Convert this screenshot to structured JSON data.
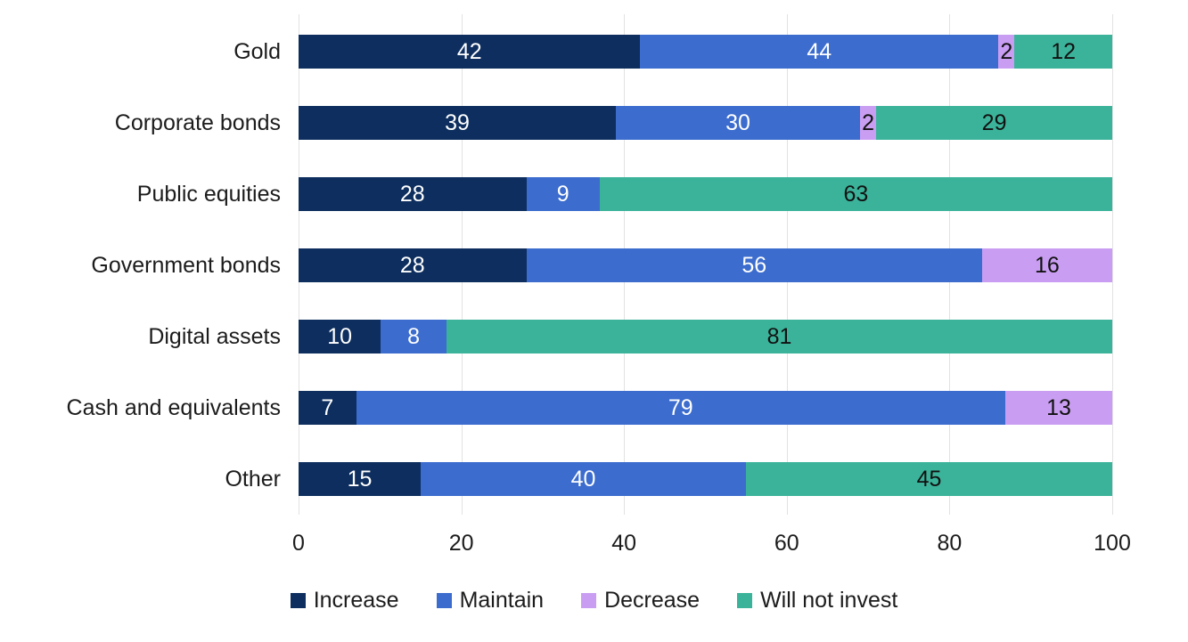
{
  "chart_data": {
    "type": "bar",
    "orientation": "horizontal",
    "stacked": true,
    "title": "",
    "xlabel": "",
    "ylabel": "",
    "categories": [
      "Gold",
      "Corporate bonds",
      "Public equities",
      "Government bonds",
      "Digital assets",
      "Cash and equivalents",
      "Other"
    ],
    "series": [
      {
        "name": "Increase",
        "color": "#0d2e5e",
        "label_color": "#ffffff",
        "values": [
          42,
          39,
          28,
          28,
          10,
          7,
          15
        ]
      },
      {
        "name": "Maintain",
        "color": "#3b6cce",
        "label_color": "#ffffff",
        "values": [
          44,
          30,
          9,
          56,
          8,
          79,
          40
        ]
      },
      {
        "name": "Decrease",
        "color": "#c99ef2",
        "label_color": "#111111",
        "values": [
          2,
          2,
          0,
          16,
          0,
          13,
          0
        ]
      },
      {
        "name": "Will not invest",
        "color": "#3bb39a",
        "label_color": "#111111",
        "values": [
          12,
          29,
          63,
          0,
          81,
          0,
          45
        ]
      }
    ],
    "x_ticks": [
      "0",
      "20",
      "40",
      "60",
      "80",
      "100"
    ],
    "xlim": [
      0,
      100
    ],
    "grid": "vertical-gridlines",
    "legend_position": "bottom",
    "gridline_color": "#e2e2e2",
    "background_color": "#ffffff"
  }
}
